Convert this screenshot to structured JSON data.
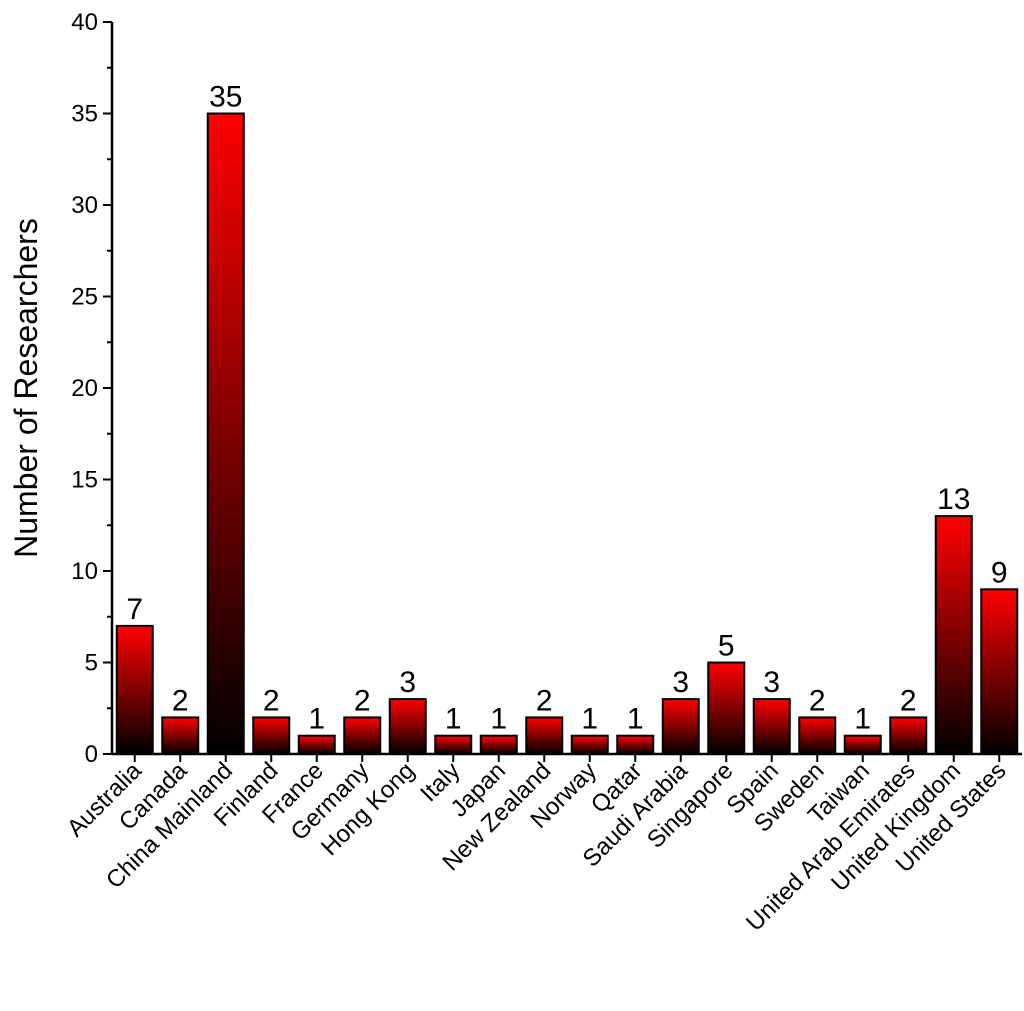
{
  "chart_data": {
    "type": "bar",
    "categories": [
      "Australia",
      "Canada",
      "China Mainland",
      "Finland",
      "France",
      "Germany",
      "Hong Kong",
      "Italy",
      "Japan",
      "New Zealand",
      "Norway",
      "Qatar",
      "Saudi Arabia",
      "Singapore",
      "Spain",
      "Sweden",
      "Taiwan",
      "United Arab Emirates",
      "United Kingdom",
      "United States"
    ],
    "values": [
      7,
      2,
      35,
      2,
      1,
      2,
      3,
      1,
      1,
      2,
      1,
      1,
      3,
      5,
      3,
      2,
      1,
      2,
      13,
      9
    ],
    "data_labels": [
      "7",
      "2",
      "35",
      "2",
      "1",
      "2",
      "3",
      "1",
      "1",
      "2",
      "1",
      "1",
      "3",
      "5",
      "3",
      "2",
      "1",
      "2",
      "13",
      "9"
    ],
    "title": "",
    "xlabel": "",
    "ylabel": "Number of Researchers",
    "ylim": [
      0,
      40
    ],
    "yticks": [
      "0",
      "5",
      "10",
      "15",
      "20",
      "25",
      "30",
      "35",
      "40"
    ],
    "grid": false,
    "legend": "none",
    "bar_gradient": {
      "top": "#ff0000",
      "bottom": "#000000"
    }
  }
}
